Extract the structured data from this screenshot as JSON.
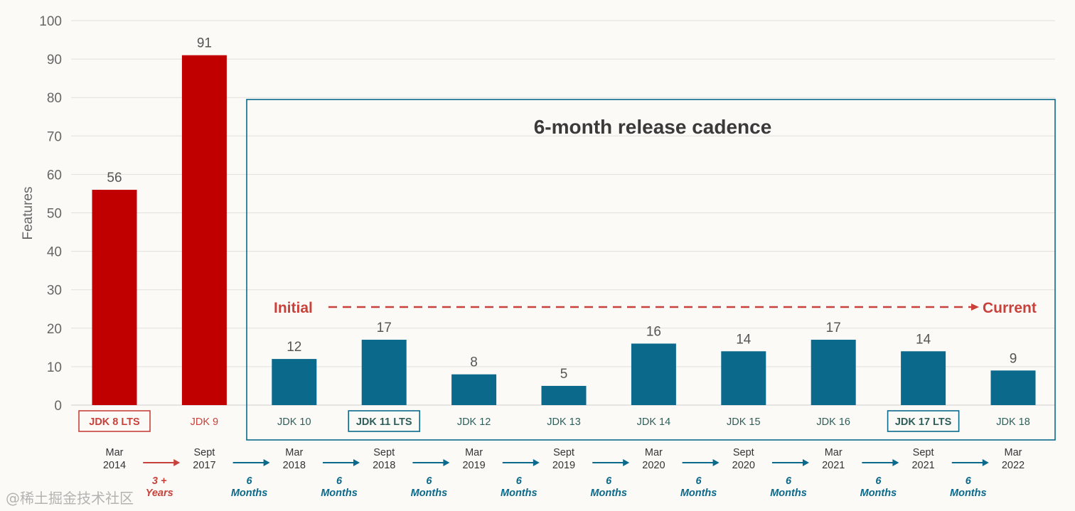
{
  "chart_data": {
    "type": "bar",
    "ylabel": "Features",
    "ylim": [
      0,
      100
    ],
    "yticks": [
      0,
      10,
      20,
      30,
      40,
      50,
      60,
      70,
      80,
      90,
      100
    ],
    "grid": true,
    "categories": [
      "JDK 8 LTS",
      "JDK 9",
      "JDK 10",
      "JDK 11 LTS",
      "JDK 12",
      "JDK 13",
      "JDK 14",
      "JDK 15",
      "JDK 16",
      "JDK 17 LTS",
      "JDK 18"
    ],
    "values": [
      56,
      91,
      12,
      17,
      8,
      5,
      16,
      14,
      17,
      14,
      9
    ],
    "lts": [
      true,
      false,
      false,
      true,
      false,
      false,
      false,
      false,
      false,
      true,
      false
    ],
    "bar_colors": [
      "#c00000",
      "#c00000",
      "#0b6a8b",
      "#0b6a8b",
      "#0b6a8b",
      "#0b6a8b",
      "#0b6a8b",
      "#0b6a8b",
      "#0b6a8b",
      "#0b6a8b",
      "#0b6a8b"
    ],
    "release_dates": [
      [
        "Mar",
        "2014"
      ],
      [
        "Sept",
        "2017"
      ],
      [
        "Mar",
        "2018"
      ],
      [
        "Sept",
        "2018"
      ],
      [
        "Mar",
        "2019"
      ],
      [
        "Sept",
        "2019"
      ],
      [
        "Mar",
        "2020"
      ],
      [
        "Sept",
        "2020"
      ],
      [
        "Mar",
        "2021"
      ],
      [
        "Sept",
        "2021"
      ],
      [
        "Mar",
        "2022"
      ]
    ],
    "intervals": [
      [
        "3 +",
        "Years"
      ],
      [
        "6",
        "Months"
      ],
      [
        "6",
        "Months"
      ],
      [
        "6",
        "Months"
      ],
      [
        "6",
        "Months"
      ],
      [
        "6",
        "Months"
      ],
      [
        "6",
        "Months"
      ],
      [
        "6",
        "Months"
      ],
      [
        "6",
        "Months"
      ],
      [
        "6",
        "Months"
      ]
    ],
    "annotations": {
      "box_title": "6-month release cadence",
      "initial": "Initial",
      "current": "Current"
    },
    "colors": {
      "red": "#c00000",
      "blue": "#0b6a8b",
      "annotation_red": "#c8413a",
      "label_green": "#2e5e5a",
      "text": "#333333"
    }
  },
  "watermark": "@稀土掘金技术社区"
}
